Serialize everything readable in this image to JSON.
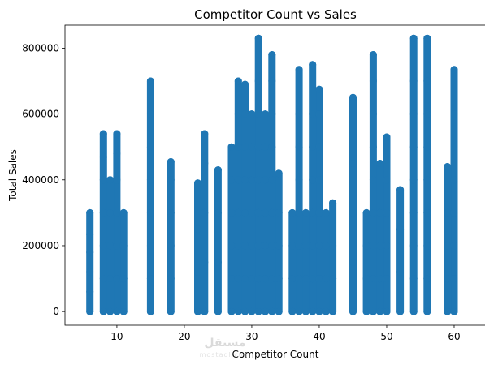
{
  "chart_data": {
    "type": "scatter",
    "title": "Competitor Count vs Sales",
    "xlabel": "Competitor Count",
    "ylabel": "Total Sales",
    "xlim": [
      2.3,
      64.7
    ],
    "ylim": [
      -41500,
      870000
    ],
    "xticks": [
      10,
      20,
      30,
      40,
      50,
      60
    ],
    "yticks": [
      0,
      200000,
      400000,
      600000,
      800000
    ],
    "ytick_labels": [
      "0",
      "200000",
      "400000",
      "600000",
      "800000"
    ],
    "marker_color": "#1f77b4",
    "grid": false,
    "legend": "none",
    "series": [
      {
        "points": [
          [
            6,
            0
          ],
          [
            6,
            60000
          ],
          [
            6,
            120000
          ],
          [
            6,
            180000
          ],
          [
            6,
            235000
          ],
          [
            6,
            300000
          ],
          [
            8,
            0
          ],
          [
            8,
            100000
          ],
          [
            8,
            200000
          ],
          [
            8,
            300000
          ],
          [
            8,
            400000
          ],
          [
            8,
            470000
          ],
          [
            8,
            540000
          ],
          [
            9,
            0
          ],
          [
            9,
            100000
          ],
          [
            9,
            200000
          ],
          [
            9,
            300000
          ],
          [
            9,
            400000
          ],
          [
            10,
            0
          ],
          [
            10,
            100000
          ],
          [
            10,
            200000
          ],
          [
            10,
            300000
          ],
          [
            10,
            400000
          ],
          [
            10,
            480000
          ],
          [
            10,
            540000
          ],
          [
            11,
            0
          ],
          [
            11,
            100000
          ],
          [
            11,
            200000
          ],
          [
            11,
            300000
          ],
          [
            15,
            0
          ],
          [
            15,
            100000
          ],
          [
            15,
            200000
          ],
          [
            15,
            300000
          ],
          [
            15,
            400000
          ],
          [
            15,
            500000
          ],
          [
            15,
            600000
          ],
          [
            15,
            700000
          ],
          [
            18,
            0
          ],
          [
            18,
            100000
          ],
          [
            18,
            200000
          ],
          [
            18,
            300000
          ],
          [
            18,
            400000
          ],
          [
            18,
            455000
          ],
          [
            22,
            0
          ],
          [
            22,
            120000
          ],
          [
            22,
            250000
          ],
          [
            22,
            390000
          ],
          [
            23,
            0
          ],
          [
            23,
            150000
          ],
          [
            23,
            300000
          ],
          [
            23,
            450000
          ],
          [
            23,
            540000
          ],
          [
            25,
            0
          ],
          [
            25,
            150000
          ],
          [
            25,
            300000
          ],
          [
            25,
            430000
          ],
          [
            27,
            0
          ],
          [
            27,
            100000
          ],
          [
            27,
            200000
          ],
          [
            27,
            300000
          ],
          [
            27,
            400000
          ],
          [
            27,
            500000
          ],
          [
            28,
            0
          ],
          [
            28,
            100000
          ],
          [
            28,
            200000
          ],
          [
            28,
            300000
          ],
          [
            28,
            400000
          ],
          [
            28,
            500000
          ],
          [
            28,
            600000
          ],
          [
            28,
            700000
          ],
          [
            29,
            0
          ],
          [
            29,
            100000
          ],
          [
            29,
            200000
          ],
          [
            29,
            300000
          ],
          [
            29,
            400000
          ],
          [
            29,
            500000
          ],
          [
            29,
            600000
          ],
          [
            29,
            690000
          ],
          [
            30,
            0
          ],
          [
            30,
            100000
          ],
          [
            30,
            200000
          ],
          [
            30,
            300000
          ],
          [
            30,
            400000
          ],
          [
            30,
            500000
          ],
          [
            30,
            600000
          ],
          [
            31,
            0
          ],
          [
            31,
            100000
          ],
          [
            31,
            200000
          ],
          [
            31,
            300000
          ],
          [
            31,
            400000
          ],
          [
            31,
            500000
          ],
          [
            31,
            600000
          ],
          [
            31,
            700000
          ],
          [
            31,
            830000
          ],
          [
            32,
            0
          ],
          [
            32,
            100000
          ],
          [
            32,
            200000
          ],
          [
            32,
            300000
          ],
          [
            32,
            400000
          ],
          [
            32,
            500000
          ],
          [
            32,
            600000
          ],
          [
            33,
            0
          ],
          [
            33,
            100000
          ],
          [
            33,
            200000
          ],
          [
            33,
            300000
          ],
          [
            33,
            400000
          ],
          [
            33,
            500000
          ],
          [
            33,
            600000
          ],
          [
            33,
            700000
          ],
          [
            33,
            780000
          ],
          [
            34,
            0
          ],
          [
            34,
            100000
          ],
          [
            34,
            200000
          ],
          [
            34,
            300000
          ],
          [
            34,
            420000
          ],
          [
            36,
            0
          ],
          [
            36,
            100000
          ],
          [
            36,
            200000
          ],
          [
            36,
            300000
          ],
          [
            37,
            0
          ],
          [
            37,
            100000
          ],
          [
            37,
            200000
          ],
          [
            37,
            300000
          ],
          [
            37,
            400000
          ],
          [
            37,
            500000
          ],
          [
            37,
            600000
          ],
          [
            37,
            735000
          ],
          [
            38,
            0
          ],
          [
            38,
            100000
          ],
          [
            38,
            200000
          ],
          [
            38,
            300000
          ],
          [
            39,
            0
          ],
          [
            39,
            100000
          ],
          [
            39,
            200000
          ],
          [
            39,
            300000
          ],
          [
            39,
            400000
          ],
          [
            39,
            500000
          ],
          [
            39,
            600000
          ],
          [
            39,
            750000
          ],
          [
            40,
            0
          ],
          [
            40,
            100000
          ],
          [
            40,
            200000
          ],
          [
            40,
            300000
          ],
          [
            40,
            400000
          ],
          [
            40,
            500000
          ],
          [
            40,
            600000
          ],
          [
            40,
            675000
          ],
          [
            41,
            0
          ],
          [
            41,
            100000
          ],
          [
            41,
            200000
          ],
          [
            41,
            300000
          ],
          [
            42,
            0
          ],
          [
            42,
            100000
          ],
          [
            42,
            200000
          ],
          [
            42,
            330000
          ],
          [
            45,
            0
          ],
          [
            45,
            150000
          ],
          [
            45,
            300000
          ],
          [
            45,
            450000
          ],
          [
            45,
            650000
          ],
          [
            47,
            0
          ],
          [
            47,
            100000
          ],
          [
            47,
            200000
          ],
          [
            47,
            300000
          ],
          [
            48,
            0
          ],
          [
            48,
            100000
          ],
          [
            48,
            200000
          ],
          [
            48,
            300000
          ],
          [
            48,
            400000
          ],
          [
            48,
            500000
          ],
          [
            48,
            600000
          ],
          [
            48,
            700000
          ],
          [
            48,
            780000
          ],
          [
            49,
            0
          ],
          [
            49,
            100000
          ],
          [
            49,
            200000
          ],
          [
            49,
            300000
          ],
          [
            49,
            450000
          ],
          [
            50,
            0
          ],
          [
            50,
            100000
          ],
          [
            50,
            200000
          ],
          [
            50,
            300000
          ],
          [
            50,
            400000
          ],
          [
            50,
            530000
          ],
          [
            52,
            0
          ],
          [
            52,
            120000
          ],
          [
            52,
            250000
          ],
          [
            52,
            370000
          ],
          [
            54,
            0
          ],
          [
            54,
            100000
          ],
          [
            54,
            200000
          ],
          [
            54,
            300000
          ],
          [
            54,
            400000
          ],
          [
            54,
            500000
          ],
          [
            54,
            600000
          ],
          [
            54,
            700000
          ],
          [
            54,
            830000
          ],
          [
            56,
            0
          ],
          [
            56,
            100000
          ],
          [
            56,
            200000
          ],
          [
            56,
            300000
          ],
          [
            56,
            400000
          ],
          [
            56,
            500000
          ],
          [
            56,
            600000
          ],
          [
            56,
            700000
          ],
          [
            56,
            830000
          ],
          [
            59,
            0
          ],
          [
            59,
            100000
          ],
          [
            59,
            200000
          ],
          [
            59,
            300000
          ],
          [
            59,
            440000
          ],
          [
            60,
            0
          ],
          [
            60,
            100000
          ],
          [
            60,
            200000
          ],
          [
            60,
            300000
          ],
          [
            60,
            400000
          ],
          [
            60,
            500000
          ],
          [
            60,
            600000
          ],
          [
            60,
            735000
          ]
        ]
      }
    ]
  },
  "watermark": {
    "text": "مستقل",
    "subtext": "mostaql.com"
  }
}
